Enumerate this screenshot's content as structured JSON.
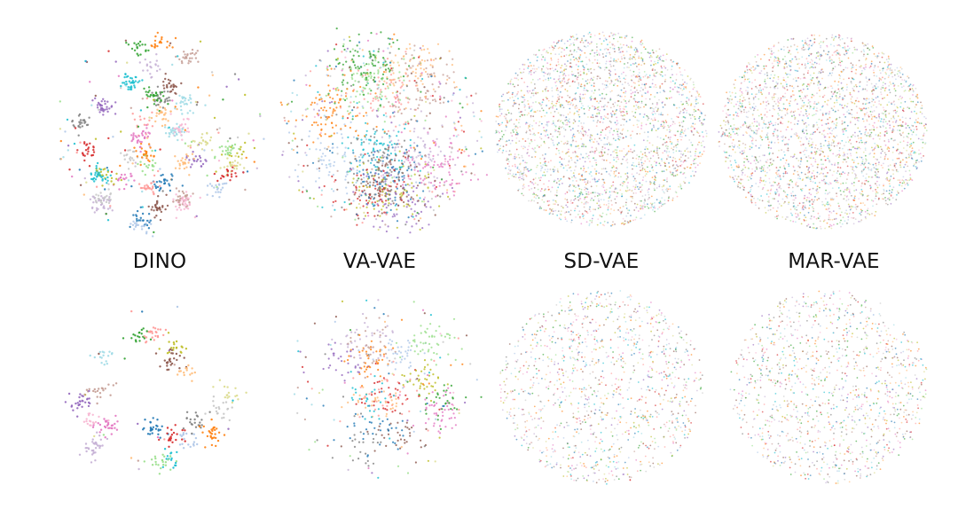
{
  "chart_data": {
    "type": "scatter",
    "methods": [
      "DINO",
      "VA-VAE",
      "SD-VAE",
      "MAR-VAE"
    ],
    "palette": [
      "#1f77b4",
      "#ff7f0e",
      "#2ca02c",
      "#d62728",
      "#9467bd",
      "#8c564b",
      "#e377c2",
      "#7f7f7f",
      "#bcbd22",
      "#17becf",
      "#aec7e8",
      "#ffbb78",
      "#98df8a",
      "#ff9896",
      "#c5b0d5",
      "#c49c94",
      "#f7b6d2",
      "#c7c7c7",
      "#dbdb8d",
      "#9edae5"
    ],
    "panels": [
      {
        "method": "DINO",
        "row": "top",
        "distribution": "separated-clusters",
        "n_points": 1100
      },
      {
        "method": "VA-VAE",
        "row": "top",
        "distribution": "partially-clustered",
        "n_points": 1600
      },
      {
        "method": "SD-VAE",
        "row": "top",
        "distribution": "mixed",
        "n_points": 2600
      },
      {
        "method": "MAR-VAE",
        "row": "top",
        "distribution": "mixed",
        "n_points": 2600
      },
      {
        "method": "DINO",
        "row": "bottom",
        "distribution": "separated-clusters",
        "n_points": 450
      },
      {
        "method": "VA-VAE",
        "row": "bottom",
        "distribution": "partially-clustered",
        "n_points": 650
      },
      {
        "method": "SD-VAE",
        "row": "bottom",
        "distribution": "mixed",
        "n_points": 1200
      },
      {
        "method": "MAR-VAE",
        "row": "bottom",
        "distribution": "mixed",
        "n_points": 1200
      }
    ]
  }
}
